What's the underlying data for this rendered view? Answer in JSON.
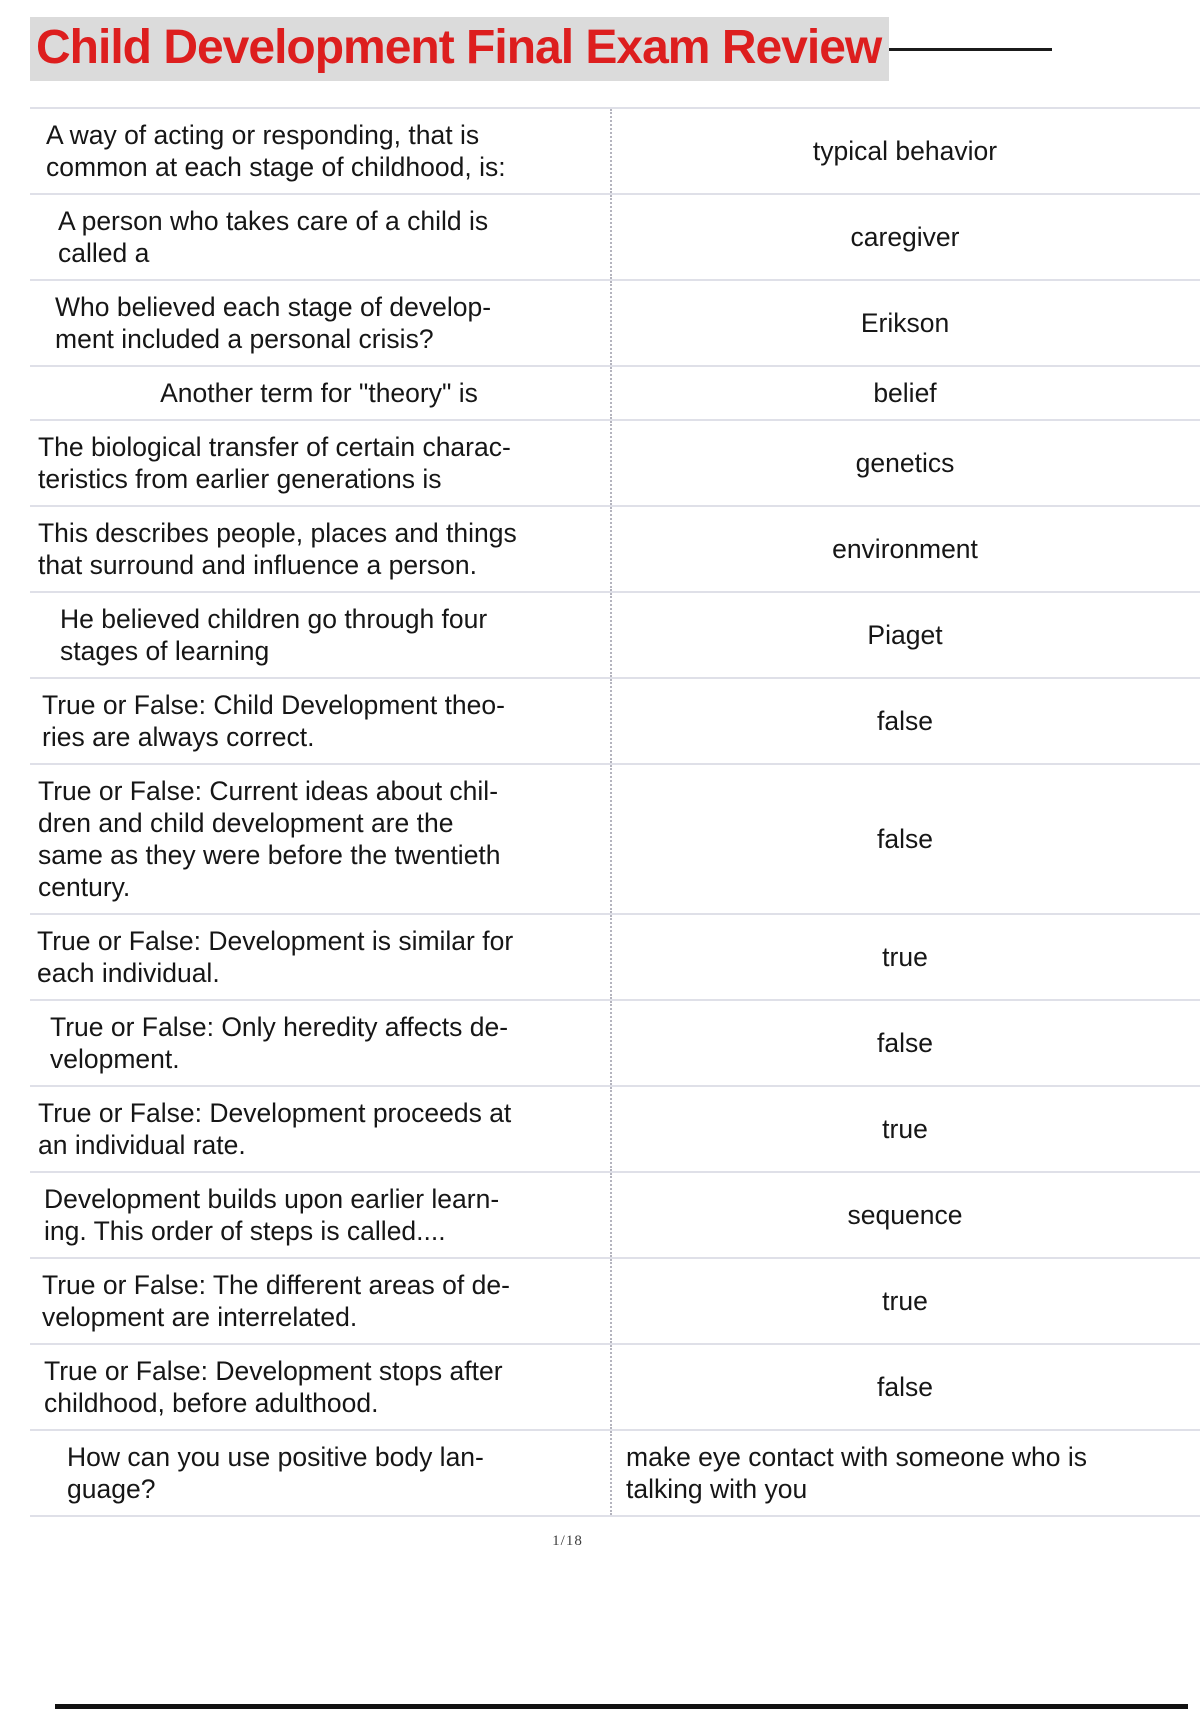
{
  "header": {
    "title": "Child Development Final Exam Review"
  },
  "rows": [
    {
      "question": [
        "A way of acting or responding, that is",
        "common at each stage of childhood, is:"
      ],
      "answer": [
        "typical behavior"
      ],
      "q_indent": 16
    },
    {
      "question": [
        "A person who takes care of a child is",
        "called a"
      ],
      "answer": [
        "caregiver"
      ],
      "q_indent": 28
    },
    {
      "question": [
        "Who believed each stage of develop-",
        "ment included a personal crisis?"
      ],
      "answer": [
        "Erikson"
      ],
      "q_indent": 25
    },
    {
      "question": [
        "Another term for \"theory\" is"
      ],
      "answer": [
        "belief"
      ],
      "q_center": true
    },
    {
      "question": [
        "The biological transfer of certain charac-",
        "teristics from earlier generations is"
      ],
      "answer": [
        "genetics"
      ],
      "q_indent": 8
    },
    {
      "question": [
        "This describes people, places and things",
        "that surround and influence a person."
      ],
      "answer": [
        "environment"
      ],
      "q_indent": 8
    },
    {
      "question": [
        "He believed children go through four",
        "stages of learning"
      ],
      "answer": [
        "Piaget"
      ],
      "q_indent": 30
    },
    {
      "question": [
        "True or False: Child Development theo-",
        "ries are always correct."
      ],
      "answer": [
        "false"
      ],
      "q_indent": 12
    },
    {
      "question": [
        "True or False: Current ideas about chil-",
        "dren and child development are the",
        "same as they were before the twentieth",
        "century."
      ],
      "answer": [
        "false"
      ],
      "q_indent": 8
    },
    {
      "question": [
        "True or False: Development is similar for",
        "each individual."
      ],
      "answer": [
        "true"
      ],
      "q_indent": 7
    },
    {
      "question": [
        "True or False: Only heredity affects de-",
        "velopment."
      ],
      "answer": [
        "false"
      ],
      "q_indent": 20
    },
    {
      "question": [
        "True or False: Development proceeds at",
        "an individual rate."
      ],
      "answer": [
        "true"
      ],
      "q_indent": 8
    },
    {
      "question": [
        "Development builds upon earlier learn-",
        "ing. This order of steps is called...."
      ],
      "answer": [
        "sequence"
      ],
      "q_indent": 14
    },
    {
      "question": [
        "True or False: The different areas of de-",
        "velopment are interrelated."
      ],
      "answer": [
        "true"
      ],
      "q_indent": 12
    },
    {
      "question": [
        "True or False: Development stops after",
        "childhood, before adulthood."
      ],
      "answer": [
        "false"
      ],
      "q_indent": 14
    },
    {
      "question": [
        "How can you use positive body lan-",
        "guage?"
      ],
      "answer": [
        "make eye contact with someone who is",
        "talking with you"
      ],
      "q_indent": 37,
      "a_left": true
    }
  ],
  "footer": {
    "page_indicator": "1/18"
  },
  "colors": {
    "title_red": "#dd1e1e",
    "title_highlight": "#dbdbdb",
    "row_separator": "#dfe0e8",
    "divider_dots": "#b4b4be",
    "text": "#161616",
    "rule_black": "#111111"
  }
}
